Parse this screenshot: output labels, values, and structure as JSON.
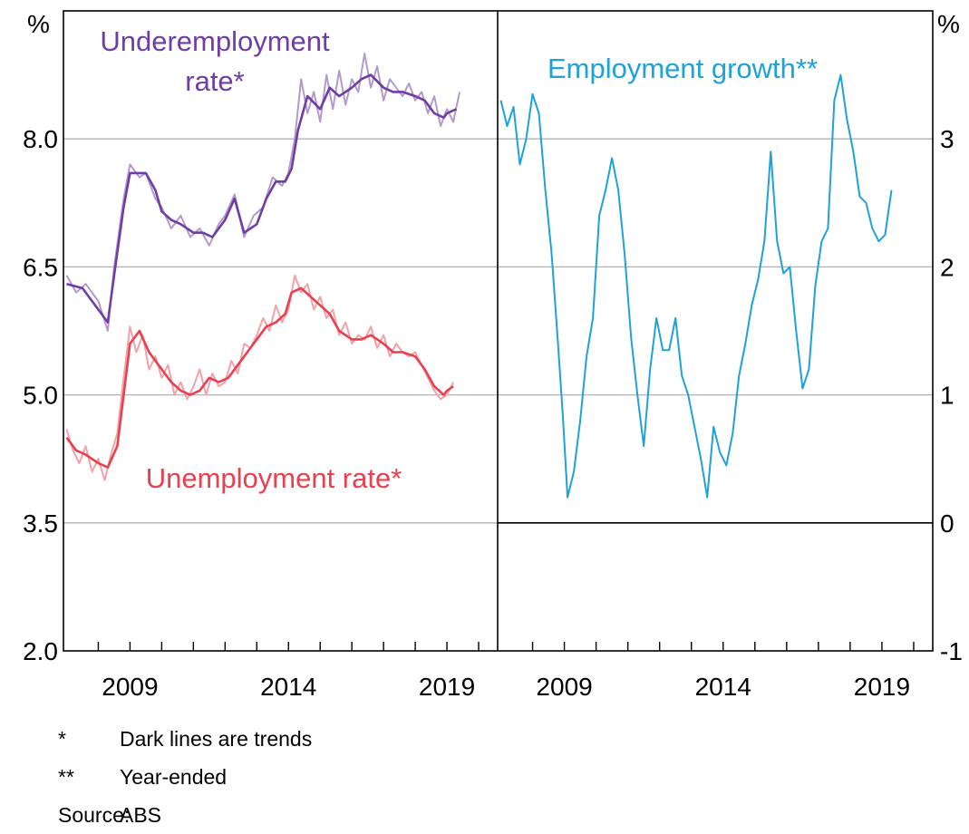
{
  "chart_data": [
    {
      "type": "line",
      "panel": "left",
      "y_unit": "%",
      "ylim": [
        2.0,
        9.5
      ],
      "y_ticks": [
        "2.0",
        "3.5",
        "5.0",
        "6.5",
        "8.0"
      ],
      "y_tick_values": [
        2.0,
        3.5,
        5.0,
        6.5,
        8.0
      ],
      "x_ticks": [
        "2009",
        "2014",
        "2019"
      ],
      "x_tick_values": [
        2009,
        2014,
        2019
      ],
      "xlim": [
        2006.9,
        2020.6
      ],
      "grid": true,
      "series": [
        {
          "name": "Underemployment rate*",
          "label_lines": [
            "Underemployment",
            "rate*"
          ],
          "color": "#6f3da5",
          "style": "trend",
          "x": [
            2007.0,
            2007.5,
            2008.0,
            2008.3,
            2008.5,
            2008.8,
            2009.0,
            2009.5,
            2009.8,
            2010.0,
            2010.3,
            2010.6,
            2011.0,
            2011.3,
            2011.6,
            2012.0,
            2012.3,
            2012.6,
            2013.0,
            2013.3,
            2013.6,
            2013.9,
            2014.1,
            2014.3,
            2014.6,
            2015.0,
            2015.3,
            2015.6,
            2016.0,
            2016.3,
            2016.6,
            2017.0,
            2017.3,
            2017.6,
            2018.0,
            2018.3,
            2018.6,
            2018.9,
            2019.0,
            2019.3
          ],
          "values": [
            6.3,
            6.25,
            6.0,
            5.85,
            6.4,
            7.2,
            7.6,
            7.6,
            7.4,
            7.15,
            7.05,
            7.0,
            6.9,
            6.9,
            6.85,
            7.05,
            7.3,
            6.9,
            7.0,
            7.3,
            7.5,
            7.5,
            7.65,
            8.1,
            8.5,
            8.35,
            8.6,
            8.5,
            8.6,
            8.7,
            8.75,
            8.6,
            8.55,
            8.55,
            8.5,
            8.45,
            8.3,
            8.25,
            8.3,
            8.35
          ]
        },
        {
          "name": "Underemployment rate (raw)",
          "color": "#b49acc",
          "style": "raw",
          "x": [
            2007.0,
            2007.3,
            2007.6,
            2008.0,
            2008.3,
            2008.5,
            2008.8,
            2009.0,
            2009.3,
            2009.5,
            2009.8,
            2010.0,
            2010.3,
            2010.6,
            2010.9,
            2011.2,
            2011.5,
            2011.8,
            2012.0,
            2012.3,
            2012.6,
            2012.9,
            2013.2,
            2013.5,
            2013.8,
            2014.0,
            2014.2,
            2014.4,
            2014.6,
            2014.8,
            2015.0,
            2015.2,
            2015.4,
            2015.6,
            2015.8,
            2016.0,
            2016.2,
            2016.4,
            2016.6,
            2016.8,
            2017.0,
            2017.2,
            2017.4,
            2017.6,
            2017.8,
            2018.0,
            2018.2,
            2018.4,
            2018.6,
            2018.8,
            2019.0,
            2019.2,
            2019.4
          ],
          "values": [
            6.4,
            6.2,
            6.3,
            6.1,
            5.75,
            6.5,
            7.3,
            7.7,
            7.55,
            7.6,
            7.3,
            7.2,
            6.95,
            7.1,
            6.85,
            6.95,
            6.75,
            7.0,
            7.1,
            7.35,
            6.85,
            7.1,
            7.2,
            7.55,
            7.45,
            7.6,
            8.0,
            8.7,
            8.3,
            8.55,
            8.2,
            8.75,
            8.35,
            8.8,
            8.4,
            8.7,
            8.55,
            9.0,
            8.6,
            8.85,
            8.45,
            8.7,
            8.6,
            8.5,
            8.65,
            8.45,
            8.55,
            8.3,
            8.5,
            8.15,
            8.35,
            8.2,
            8.55
          ]
        },
        {
          "name": "Unemployment rate*",
          "label_lines": [
            "Unemployment rate*"
          ],
          "color": "#e8404e",
          "style": "trend",
          "x": [
            2007.0,
            2007.3,
            2007.6,
            2008.0,
            2008.3,
            2008.6,
            2008.8,
            2009.0,
            2009.3,
            2009.6,
            2010.0,
            2010.3,
            2010.6,
            2010.9,
            2011.2,
            2011.5,
            2011.8,
            2012.1,
            2012.4,
            2012.7,
            2013.0,
            2013.3,
            2013.6,
            2013.9,
            2014.1,
            2014.4,
            2014.7,
            2015.0,
            2015.3,
            2015.6,
            2016.0,
            2016.3,
            2016.6,
            2017.0,
            2017.3,
            2017.6,
            2018.0,
            2018.3,
            2018.6,
            2018.9,
            2019.0,
            2019.2
          ],
          "values": [
            4.5,
            4.35,
            4.3,
            4.2,
            4.15,
            4.4,
            5.0,
            5.6,
            5.75,
            5.5,
            5.3,
            5.15,
            5.05,
            5.0,
            5.05,
            5.2,
            5.15,
            5.2,
            5.35,
            5.5,
            5.65,
            5.8,
            5.85,
            5.95,
            6.2,
            6.25,
            6.15,
            6.05,
            5.95,
            5.75,
            5.65,
            5.65,
            5.7,
            5.6,
            5.5,
            5.5,
            5.45,
            5.3,
            5.1,
            5.0,
            5.05,
            5.1
          ]
        },
        {
          "name": "Unemployment rate (raw)",
          "color": "#f2a2aa",
          "style": "raw",
          "x": [
            2007.0,
            2007.2,
            2007.4,
            2007.6,
            2007.8,
            2008.0,
            2008.2,
            2008.4,
            2008.6,
            2008.8,
            2009.0,
            2009.2,
            2009.4,
            2009.6,
            2009.8,
            2010.0,
            2010.2,
            2010.4,
            2010.6,
            2010.8,
            2011.0,
            2011.2,
            2011.4,
            2011.6,
            2011.8,
            2012.0,
            2012.2,
            2012.4,
            2012.6,
            2012.8,
            2013.0,
            2013.2,
            2013.4,
            2013.6,
            2013.8,
            2014.0,
            2014.2,
            2014.4,
            2014.6,
            2014.8,
            2015.0,
            2015.2,
            2015.4,
            2015.6,
            2015.8,
            2016.0,
            2016.2,
            2016.4,
            2016.6,
            2016.8,
            2017.0,
            2017.2,
            2017.4,
            2017.6,
            2017.8,
            2018.0,
            2018.2,
            2018.4,
            2018.6,
            2018.8,
            2019.0,
            2019.2
          ],
          "values": [
            4.6,
            4.35,
            4.2,
            4.4,
            4.1,
            4.25,
            4.0,
            4.3,
            4.55,
            5.2,
            5.8,
            5.5,
            5.7,
            5.3,
            5.45,
            5.2,
            5.35,
            5.0,
            5.15,
            4.95,
            5.1,
            5.3,
            5.0,
            5.25,
            5.1,
            5.15,
            5.4,
            5.25,
            5.6,
            5.55,
            5.7,
            5.9,
            5.75,
            6.05,
            5.85,
            6.0,
            6.4,
            6.2,
            6.3,
            6.0,
            6.15,
            5.9,
            6.0,
            5.7,
            5.85,
            5.6,
            5.7,
            5.65,
            5.8,
            5.55,
            5.7,
            5.45,
            5.6,
            5.5,
            5.45,
            5.5,
            5.35,
            5.2,
            5.05,
            4.95,
            5.0,
            5.15
          ]
        }
      ]
    },
    {
      "type": "line",
      "panel": "right",
      "y_unit": "%",
      "ylim": [
        -1,
        4
      ],
      "y_ticks": [
        "-1",
        "0",
        "1",
        "2",
        "3"
      ],
      "y_tick_values": [
        -1,
        0,
        1,
        2,
        3
      ],
      "x_ticks": [
        "2009",
        "2014",
        "2019"
      ],
      "x_tick_values": [
        2009,
        2014,
        2019
      ],
      "xlim": [
        2006.9,
        2020.6
      ],
      "grid": true,
      "series": [
        {
          "name": "Employment growth**",
          "label_lines": [
            "Employment growth**"
          ],
          "color": "#1ea2d8",
          "style": "raw",
          "x": [
            2007.0,
            2007.2,
            2007.4,
            2007.6,
            2007.8,
            2008.0,
            2008.2,
            2008.4,
            2008.6,
            2008.8,
            2008.95,
            2009.1,
            2009.3,
            2009.5,
            2009.7,
            2009.9,
            2010.1,
            2010.3,
            2010.5,
            2010.7,
            2010.9,
            2011.1,
            2011.3,
            2011.5,
            2011.7,
            2011.9,
            2012.1,
            2012.3,
            2012.5,
            2012.7,
            2012.9,
            2013.1,
            2013.3,
            2013.5,
            2013.7,
            2013.9,
            2014.1,
            2014.3,
            2014.5,
            2014.7,
            2014.9,
            2015.1,
            2015.3,
            2015.5,
            2015.7,
            2015.9,
            2016.1,
            2016.3,
            2016.5,
            2016.7,
            2016.9,
            2017.1,
            2017.3,
            2017.5,
            2017.7,
            2017.9,
            2018.1,
            2018.3,
            2018.5,
            2018.7,
            2018.9,
            2019.1,
            2019.3
          ],
          "values": [
            3.3,
            3.1,
            3.25,
            2.8,
            3.0,
            3.35,
            3.2,
            2.6,
            2.1,
            1.4,
            0.85,
            0.2,
            0.4,
            0.8,
            1.3,
            1.6,
            2.4,
            2.6,
            2.85,
            2.6,
            2.1,
            1.45,
            1.0,
            0.6,
            1.2,
            1.6,
            1.35,
            1.35,
            1.6,
            1.15,
            1.0,
            0.75,
            0.5,
            0.2,
            0.75,
            0.55,
            0.45,
            0.7,
            1.15,
            1.4,
            1.7,
            1.9,
            2.2,
            2.9,
            2.2,
            1.95,
            2.0,
            1.5,
            1.05,
            1.2,
            1.85,
            2.2,
            2.3,
            3.3,
            3.5,
            3.15,
            2.9,
            2.55,
            2.5,
            2.3,
            2.2,
            2.25,
            2.6
          ]
        }
      ]
    }
  ],
  "notes": [
    {
      "marker": "*",
      "text": "Dark lines are trends"
    },
    {
      "marker": "**",
      "text": "Year-ended"
    },
    {
      "marker": "Source:",
      "text": "ABS"
    }
  ]
}
